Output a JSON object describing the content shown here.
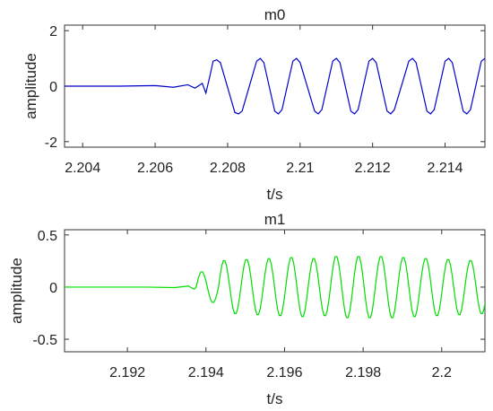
{
  "chart_data": [
    {
      "type": "line",
      "title": "m0",
      "xlabel": "t/s",
      "ylabel": "amplitude",
      "xlim": [
        2.2035,
        2.2151
      ],
      "ylim": [
        -2.2,
        2.2
      ],
      "xticks": [
        2.204,
        2.206,
        2.208,
        2.21,
        2.212,
        2.214
      ],
      "xtick_labels": [
        "2.204",
        "2.206",
        "2.208",
        "2.21",
        "2.212",
        "2.214"
      ],
      "yticks": [
        -2,
        0,
        2
      ],
      "ytick_labels": [
        "-2",
        "0",
        "2"
      ],
      "grid": false,
      "series": [
        {
          "color": "#0000cc",
          "x": [
            2.2035,
            2.205,
            2.206,
            2.2065,
            2.2069,
            2.2071,
            2.2073,
            2.2074,
            2.2075,
            2.2076,
            2.2077,
            2.2078,
            2.2082,
            2.2083,
            2.2084,
            2.2088,
            2.2089,
            2.209,
            2.2093,
            2.2094,
            2.2095,
            2.2098,
            2.2099,
            2.21,
            2.2104,
            2.2105,
            2.2106,
            2.2109,
            2.211,
            2.2111,
            2.2114,
            2.2115,
            2.2116,
            2.2119,
            2.212,
            2.2121,
            2.2124,
            2.2125,
            2.2126,
            2.213,
            2.2131,
            2.2132,
            2.2135,
            2.2136,
            2.2137,
            2.214,
            2.2141,
            2.2142,
            2.2145,
            2.2146,
            2.2147,
            2.215,
            2.2151
          ],
          "values": [
            0,
            0,
            0.02,
            -0.04,
            0.05,
            -0.07,
            0.1,
            -0.25,
            0.3,
            0.9,
            0.95,
            0.85,
            -0.95,
            -1.0,
            -0.9,
            0.9,
            1.0,
            0.85,
            -0.9,
            -1.0,
            -0.85,
            0.9,
            1.0,
            0.85,
            -0.9,
            -1.0,
            -0.85,
            0.9,
            1.0,
            0.85,
            -0.9,
            -1.0,
            -0.85,
            0.9,
            1.0,
            0.85,
            -0.9,
            -1.0,
            -0.85,
            0.9,
            1.0,
            0.85,
            -0.9,
            -1.0,
            -0.85,
            0.9,
            1.0,
            0.85,
            -0.9,
            -1.0,
            -0.85,
            0.9,
            1.0
          ]
        }
      ]
    },
    {
      "type": "line",
      "title": "m1",
      "xlabel": "t/s",
      "ylabel": "amplitude",
      "xlim": [
        2.1904,
        2.2011
      ],
      "ylim": [
        -0.62,
        0.55
      ],
      "xticks": [
        2.192,
        2.194,
        2.196,
        2.198,
        2.2
      ],
      "xtick_labels": [
        "2.192",
        "2.194",
        "2.196",
        "2.198",
        "2.2"
      ],
      "yticks": [
        -0.5,
        0,
        0.5
      ],
      "ytick_labels": [
        "-0.5",
        "0",
        "0.5"
      ],
      "grid": false,
      "series": [
        {
          "color": "#00dd00",
          "onset": 2.19375,
          "period": 0.00057,
          "amplitude": [
            0.15,
            0.26,
            0.27,
            0.28,
            0.29,
            0.28,
            0.3,
            0.3,
            0.3,
            0.29,
            0.28,
            0.27,
            0.26,
            0.26,
            0.25,
            0.25,
            0.24,
            0.24,
            0.24
          ],
          "x": [
            2.1904,
            2.1925,
            2.1932,
            2.19355,
            2.1937,
            2.19375
          ],
          "values": [
            0,
            0,
            -0.005,
            0.01,
            -0.02,
            0
          ]
        }
      ]
    }
  ]
}
